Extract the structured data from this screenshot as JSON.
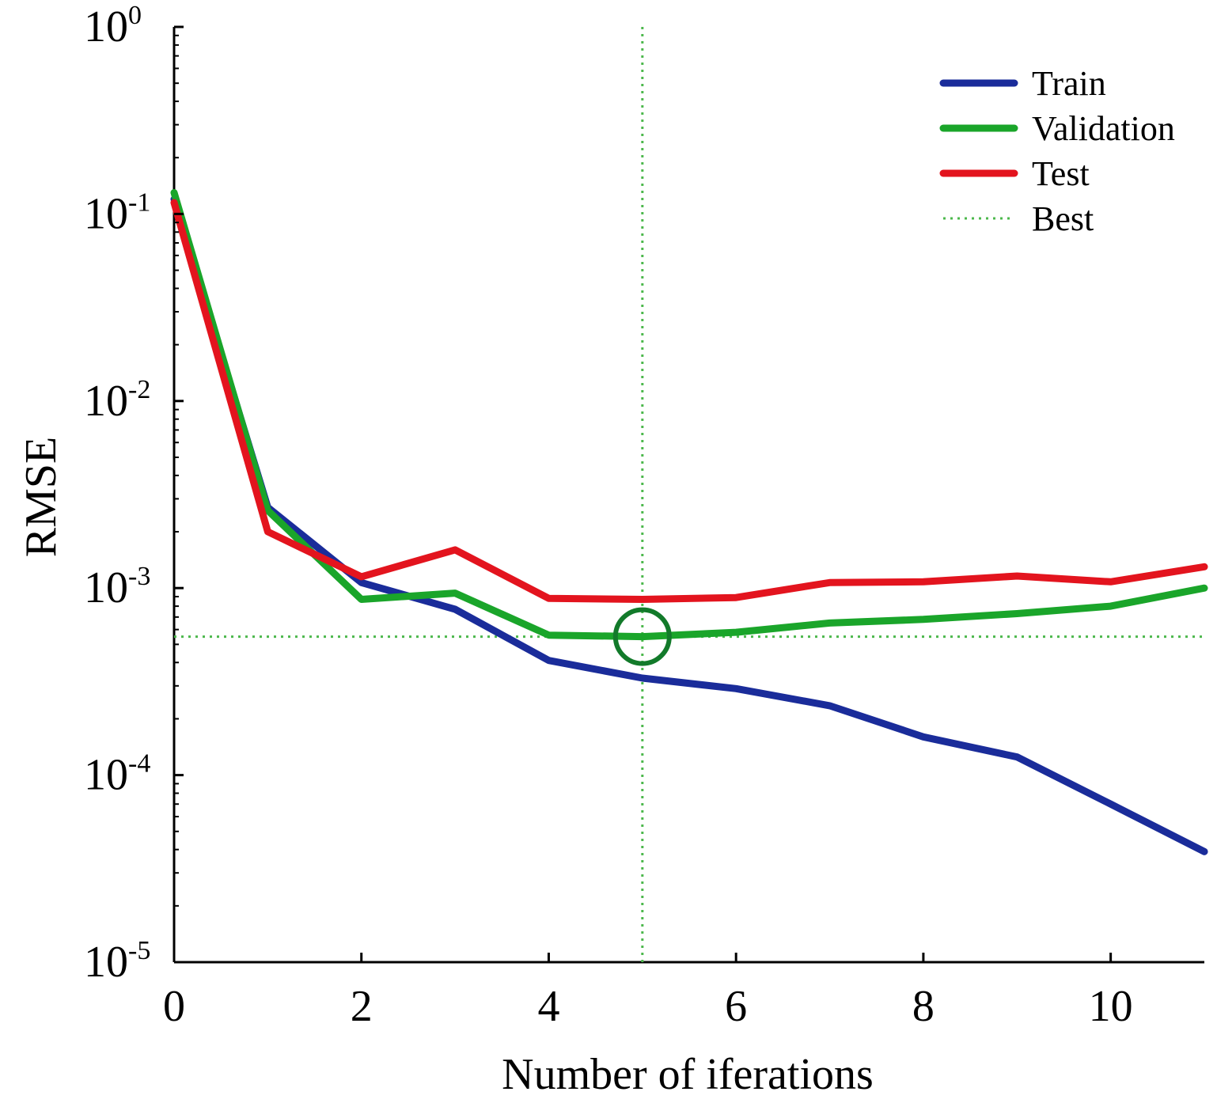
{
  "chart_data": {
    "type": "line",
    "xlabel": "Number of iferations",
    "ylabel": "RMSE",
    "xlim": [
      0,
      11
    ],
    "ylim": [
      1e-05,
      1
    ],
    "yscale": "log",
    "x_ticks": [
      0,
      2,
      4,
      6,
      8,
      10
    ],
    "x_tick_labels": [
      "0",
      "2",
      "4",
      "6",
      "8",
      "10"
    ],
    "y_ticks": [
      {
        "value": 1,
        "base": "10",
        "exp": "0"
      },
      {
        "value": 0.1,
        "base": "10",
        "exp": "-1"
      },
      {
        "value": 0.01,
        "base": "10",
        "exp": "-2"
      },
      {
        "value": 0.001,
        "base": "10",
        "exp": "-3"
      },
      {
        "value": 0.0001,
        "base": "10",
        "exp": "-4"
      },
      {
        "value": 1e-05,
        "base": "10",
        "exp": "-5"
      }
    ],
    "x": [
      0,
      1,
      2,
      3,
      4,
      5,
      6,
      7,
      8,
      9,
      10,
      11
    ],
    "series": [
      {
        "name": "Train",
        "color": "#1a2c9a",
        "values": [
          0.12,
          0.0027,
          0.00107,
          0.00077,
          0.00041,
          0.00033,
          0.00029,
          0.000235,
          0.00016,
          0.000125,
          7e-05,
          3.9e-05
        ]
      },
      {
        "name": "Validation",
        "color": "#1aa52a",
        "values": [
          0.13,
          0.0026,
          0.00087,
          0.00094,
          0.00056,
          0.00055,
          0.00058,
          0.00065,
          0.00068,
          0.00073,
          0.0008,
          0.001
        ]
      },
      {
        "name": "Test",
        "color": "#e3141e",
        "values": [
          0.115,
          0.002,
          0.00115,
          0.0016,
          0.00088,
          0.00087,
          0.00089,
          0.00107,
          0.00108,
          0.00116,
          0.00108,
          0.0013
        ]
      }
    ],
    "best": {
      "name": "Best",
      "color": "#4cb84c",
      "x": 5,
      "y": 0.00055,
      "marker_color": "#127a2a"
    },
    "legend_position": "top-right",
    "grid": false
  }
}
